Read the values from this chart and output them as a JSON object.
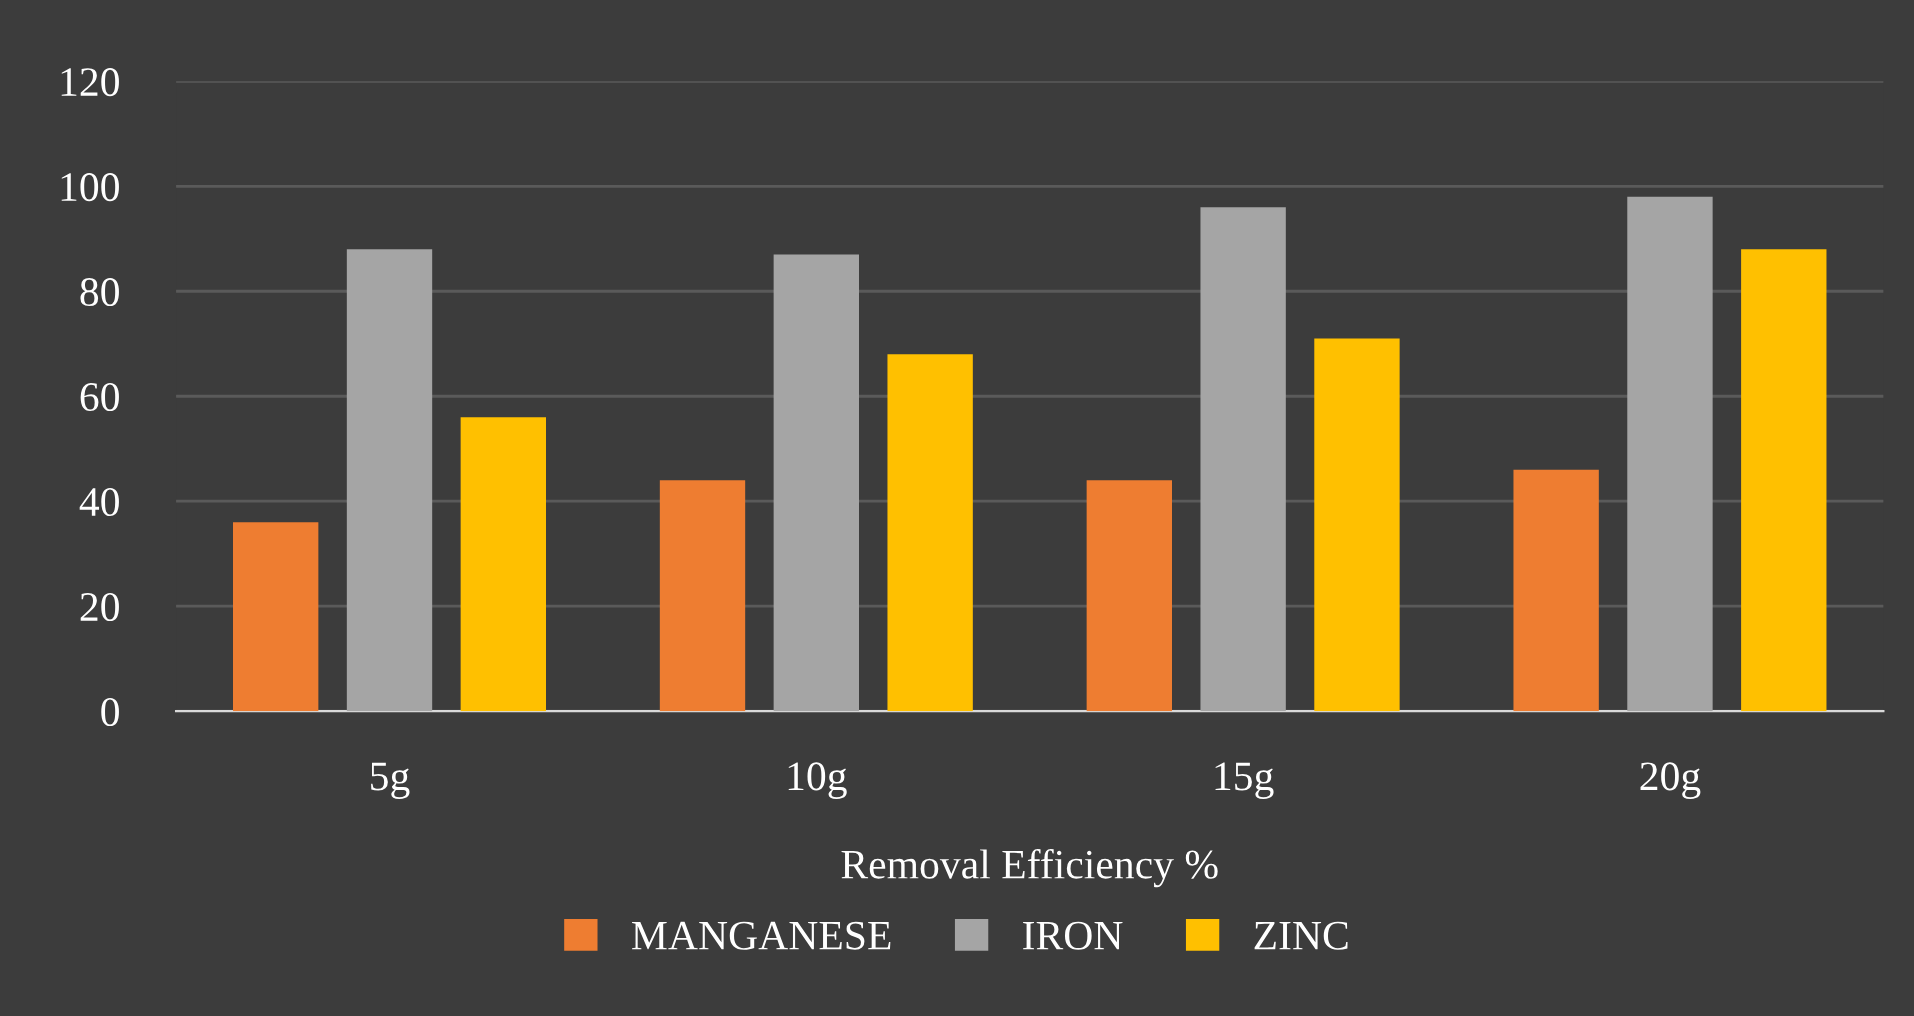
{
  "chart_data": {
    "type": "bar",
    "xlabel": "Removal Efficiency %",
    "categories": [
      "5g",
      "10g",
      "15g",
      "20g"
    ],
    "series": [
      {
        "name": "MANGANESE",
        "color": "#ee7d31",
        "values": [
          36,
          44,
          44,
          46
        ]
      },
      {
        "name": "IRON",
        "color": "#a5a5a5",
        "values": [
          88,
          87,
          96,
          98
        ]
      },
      {
        "name": "ZINC",
        "color": "#ffc000",
        "values": [
          56,
          68,
          71,
          88
        ]
      }
    ],
    "ylim": [
      0,
      120
    ],
    "yticks": [
      0,
      20,
      40,
      60,
      80,
      100,
      120
    ],
    "grid": "y",
    "legend": "bottom"
  }
}
